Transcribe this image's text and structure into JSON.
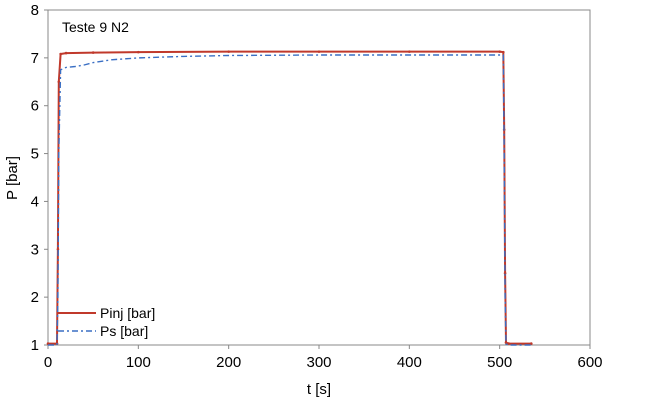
{
  "chart_data": {
    "type": "line",
    "title": "Teste 9 N2",
    "xlabel": "t [s]",
    "ylabel": "P [bar]",
    "xlim": [
      0,
      600
    ],
    "ylim": [
      1,
      8
    ],
    "xticks": [
      0,
      100,
      200,
      300,
      400,
      500,
      600
    ],
    "yticks": [
      1,
      2,
      3,
      4,
      5,
      6,
      7,
      8
    ],
    "grid": false,
    "legend_position": "bottom-left",
    "series": [
      {
        "name": "Pinj [bar]",
        "color": "#c0392b",
        "style": "solid-with-markers",
        "x": [
          0,
          10,
          11,
          12,
          14,
          20,
          50,
          100,
          200,
          300,
          400,
          500,
          504,
          505,
          506,
          507,
          510,
          535
        ],
        "y": [
          1.03,
          1.03,
          3.0,
          6.5,
          7.08,
          7.1,
          7.11,
          7.12,
          7.13,
          7.13,
          7.13,
          7.13,
          7.12,
          5.5,
          2.5,
          1.05,
          1.03,
          1.03
        ]
      },
      {
        "name": "Ps [bar]",
        "color": "#3a6fc4",
        "style": "dash-dot",
        "x": [
          0,
          10,
          11,
          12,
          14,
          20,
          30,
          40,
          50,
          70,
          100,
          150,
          200,
          300,
          400,
          500,
          504,
          505,
          506,
          507,
          510,
          535
        ],
        "y": [
          1.0,
          1.0,
          2.0,
          5.0,
          6.75,
          6.8,
          6.82,
          6.85,
          6.9,
          6.96,
          7.0,
          7.03,
          7.05,
          7.06,
          7.06,
          7.06,
          7.06,
          5.0,
          2.0,
          1.02,
          1.0,
          1.0
        ]
      }
    ]
  }
}
